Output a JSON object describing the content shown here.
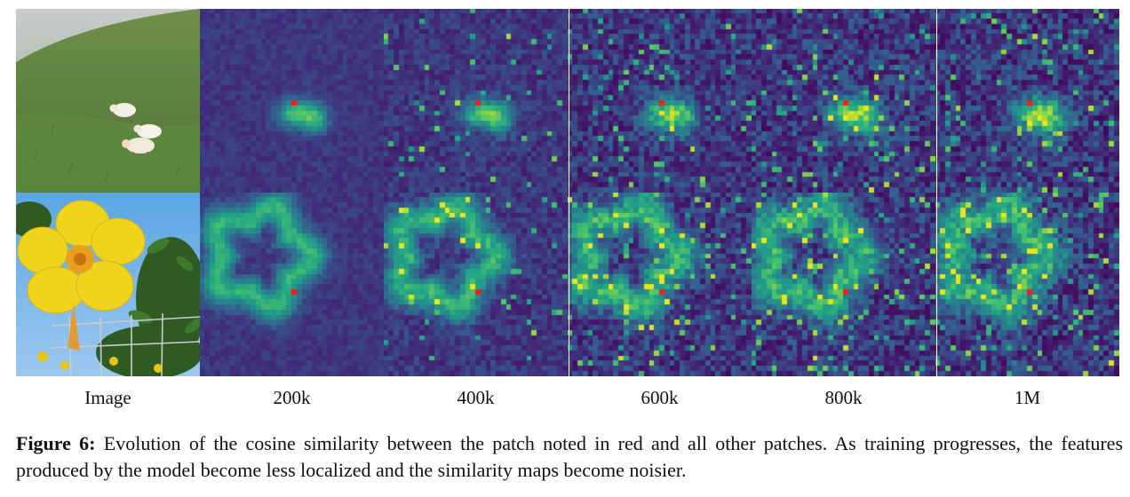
{
  "columns": [
    {
      "label": "Image"
    },
    {
      "label": "200k"
    },
    {
      "label": "400k"
    },
    {
      "label": "600k"
    },
    {
      "label": "800k"
    },
    {
      "label": "1M"
    }
  ],
  "caption": {
    "label": "Figure 6:",
    "text": "Evolution of the cosine similarity between the patch noted in red and all other patches. As training progresses, the features produced by the model become less localized and the similarity maps become noisier."
  },
  "colors": {
    "query_patch": "#ff1a1a",
    "map_low": "#3b3f8a",
    "map_high": "#d8e219"
  },
  "photos": {
    "top": "sheep-grazing-on-hillside",
    "bottom": "yellow-flower-by-fence"
  }
}
